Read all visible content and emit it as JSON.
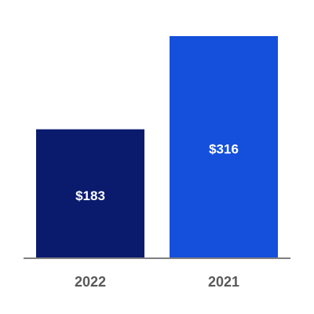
{
  "chart_data": {
    "type": "bar",
    "categories": [
      "2022",
      "2021"
    ],
    "values": [
      183,
      316
    ],
    "value_labels": [
      "$183",
      "$316"
    ],
    "colors": [
      "#0a1b6e",
      "#1450db"
    ]
  }
}
